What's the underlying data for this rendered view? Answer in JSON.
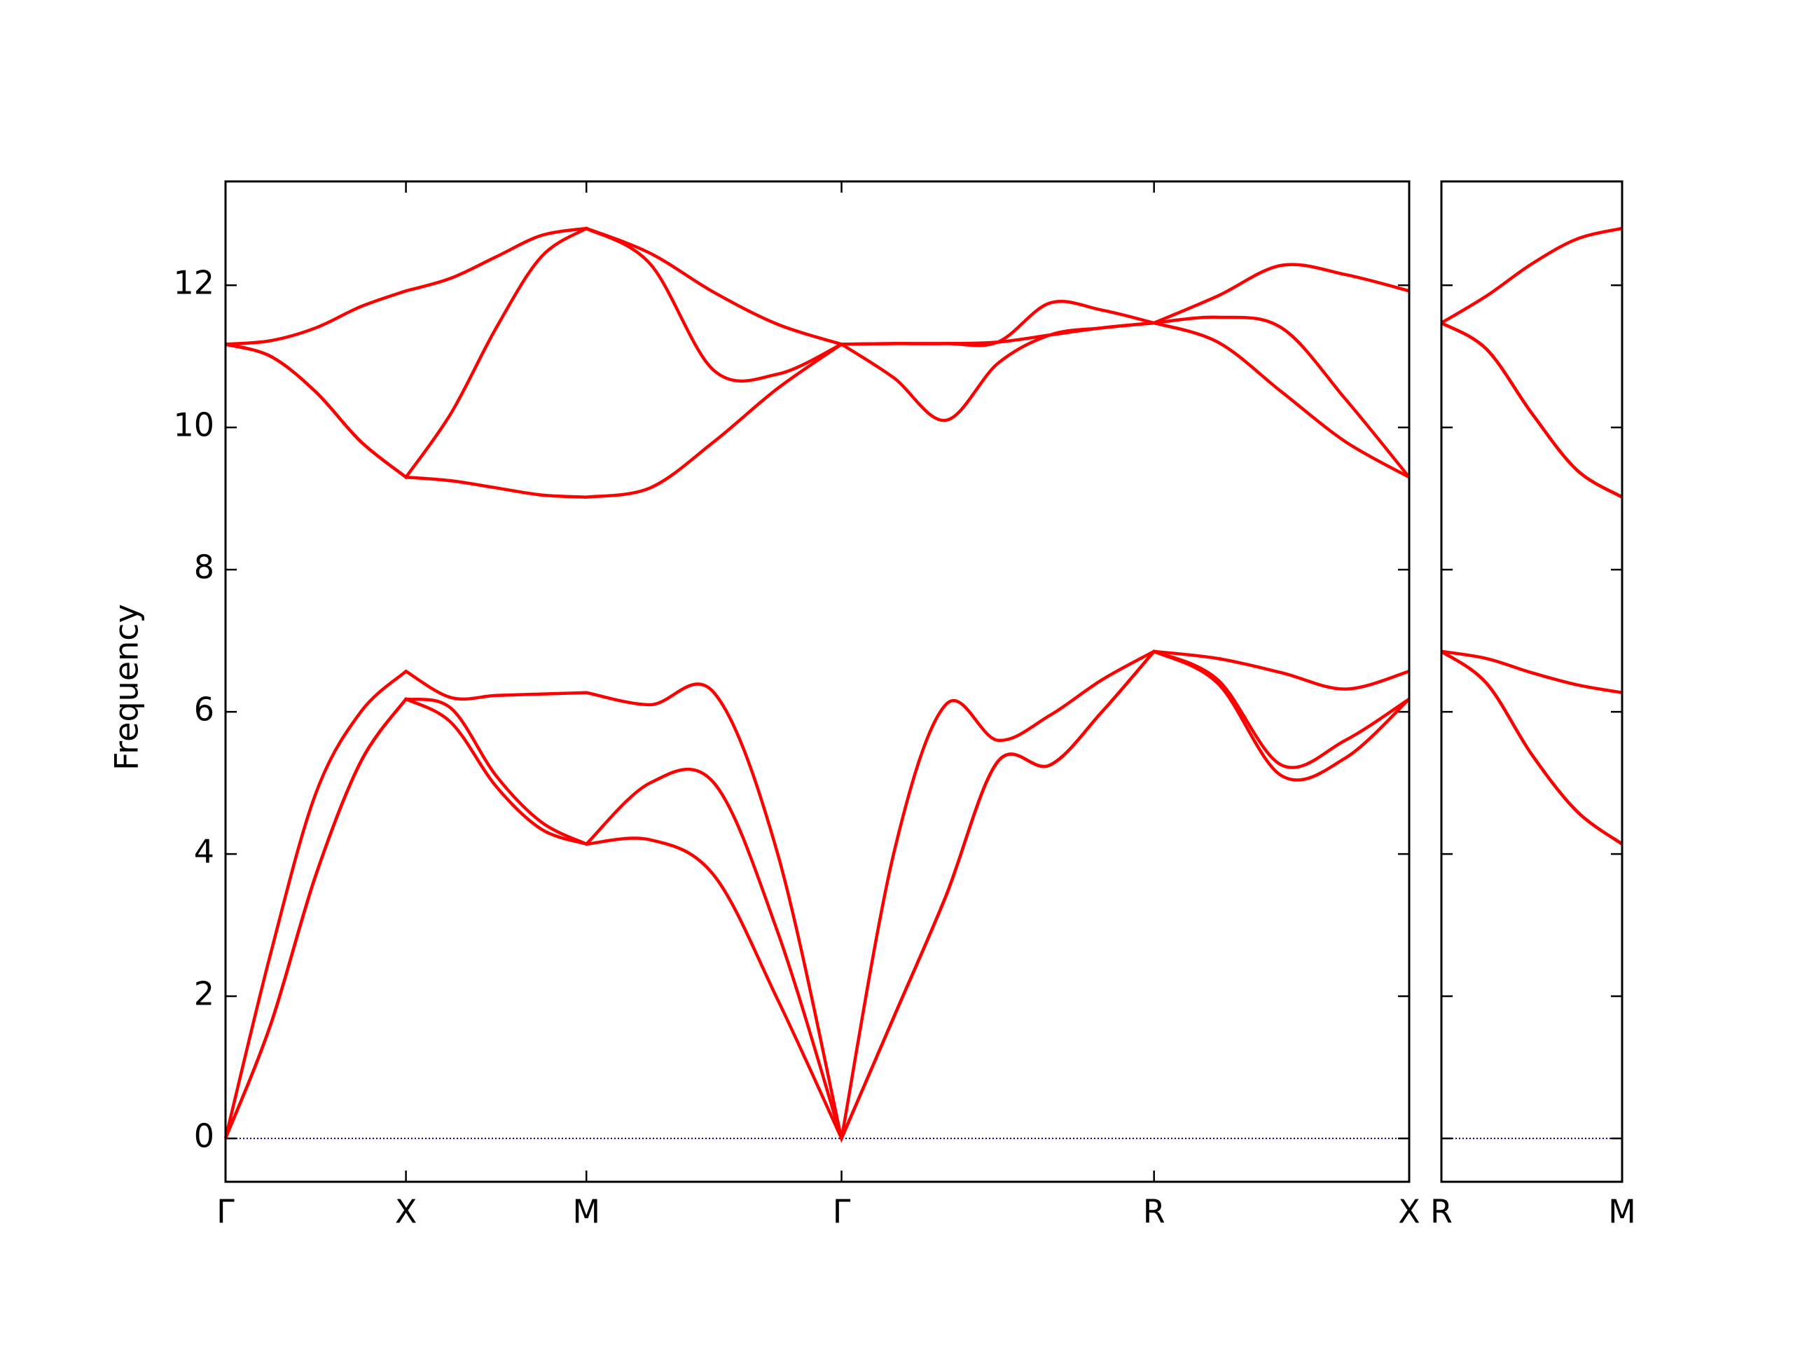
{
  "chart_data": [
    {
      "type": "line",
      "ylabel": "Frequency",
      "x": [
        0,
        0.125,
        0.25,
        0.375,
        0.5,
        0.625,
        0.75,
        0.875,
        1.0,
        1.1768,
        1.3536,
        1.5303,
        1.7071,
        1.8514,
        1.9957,
        2.1401,
        2.2844,
        2.4288,
        2.5731,
        2.7499,
        2.9267,
        3.1034,
        3.2802
      ],
      "xlim": [
        0,
        3.2802
      ],
      "xticks": [
        {
          "value": 0,
          "label": "Γ"
        },
        {
          "value": 0.5,
          "label": "X"
        },
        {
          "value": 1.0,
          "label": "M"
        },
        {
          "value": 1.7071,
          "label": "Γ"
        },
        {
          "value": 2.5731,
          "label": "R"
        },
        {
          "value": 3.2802,
          "label": "X"
        }
      ],
      "ylim": [
        -0.61,
        13.46
      ],
      "yticks": [
        0,
        2,
        4,
        6,
        8,
        10,
        12
      ],
      "hline": 0,
      "hline_color": "#00008b",
      "series": [
        {
          "color": "#ff0000",
          "values": [
            0,
            1.6,
            3.7,
            5.3,
            6.18,
            5.85,
            4.95,
            4.35,
            4.14,
            4.2,
            3.7,
            1.95,
            0,
            1.7,
            3.4,
            5.3,
            5.25,
            6.0,
            6.85,
            6.4,
            5.1,
            5.35,
            6.18
          ]
        },
        {
          "color": "#ff0000",
          "values": [
            0,
            1.6,
            3.7,
            5.3,
            6.18,
            6.05,
            5.1,
            4.45,
            4.14,
            5.0,
            5.0,
            2.9,
            0,
            1.7,
            3.4,
            5.3,
            5.25,
            6.0,
            6.85,
            6.45,
            5.25,
            5.6,
            6.18
          ]
        },
        {
          "color": "#ff0000",
          "values": [
            0,
            2.6,
            4.85,
            6.0,
            6.57,
            6.2,
            6.23,
            6.25,
            6.27,
            6.1,
            6.27,
            4.0,
            0,
            4.0,
            6.1,
            5.6,
            5.95,
            6.45,
            6.85,
            6.75,
            6.55,
            6.32,
            6.57
          ]
        },
        {
          "color": "#ff0000",
          "values": [
            11.17,
            11.0,
            10.5,
            9.8,
            9.3,
            9.25,
            9.15,
            9.05,
            9.02,
            9.15,
            9.8,
            10.55,
            11.17,
            10.7,
            10.1,
            10.9,
            11.3,
            11.4,
            11.47,
            11.2,
            10.5,
            9.8,
            9.3
          ]
        },
        {
          "color": "#ff0000",
          "values": [
            11.17,
            11.0,
            10.5,
            9.8,
            9.3,
            10.2,
            11.4,
            12.4,
            12.8,
            12.3,
            10.8,
            10.75,
            11.17,
            11.18,
            11.18,
            11.2,
            11.3,
            11.4,
            11.47,
            11.55,
            11.4,
            10.4,
            9.3
          ]
        },
        {
          "color": "#ff0000",
          "values": [
            11.17,
            11.22,
            11.4,
            11.7,
            11.92,
            12.1,
            12.4,
            12.7,
            12.8,
            12.45,
            11.9,
            11.45,
            11.17,
            11.18,
            11.18,
            11.2,
            11.75,
            11.65,
            11.47,
            11.85,
            12.28,
            12.15,
            11.92
          ]
        }
      ]
    },
    {
      "type": "line",
      "x": [
        0,
        0.125,
        0.25,
        0.375,
        0.5
      ],
      "xlim": [
        0,
        0.5
      ],
      "xticks": [
        {
          "value": 0,
          "label": "R"
        },
        {
          "value": 0.5,
          "label": "M"
        }
      ],
      "ylim": [
        -0.61,
        13.46
      ],
      "yticks": [
        0,
        2,
        4,
        6,
        8,
        10,
        12
      ],
      "hline": 0,
      "hline_color": "#00008b",
      "series": [
        {
          "color": "#ff0000",
          "values": [
            6.85,
            6.4,
            5.4,
            4.6,
            4.14
          ]
        },
        {
          "color": "#ff0000",
          "values": [
            6.85,
            6.4,
            5.4,
            4.6,
            4.14
          ]
        },
        {
          "color": "#ff0000",
          "values": [
            6.85,
            6.75,
            6.55,
            6.38,
            6.27
          ]
        },
        {
          "color": "#ff0000",
          "values": [
            11.47,
            11.1,
            10.2,
            9.4,
            9.02
          ]
        },
        {
          "color": "#ff0000",
          "values": [
            11.47,
            11.1,
            10.2,
            9.4,
            9.02
          ]
        },
        {
          "color": "#ff0000",
          "values": [
            11.47,
            11.85,
            12.3,
            12.65,
            12.8
          ]
        }
      ]
    }
  ]
}
